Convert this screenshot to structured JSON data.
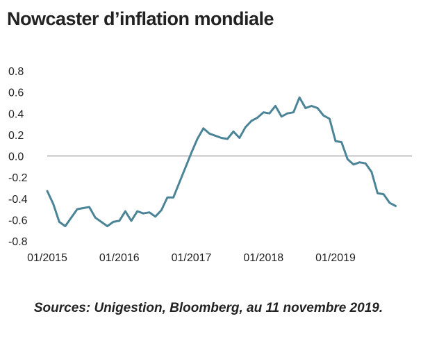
{
  "title": "Nowcaster d’inflation mondiale",
  "caption": "Sources: Unigestion, Bloomberg, au 11 novembre 2019.",
  "colors": {
    "line": "#4a8496",
    "zero_line": "#aaaaaa",
    "text": "#222222"
  },
  "chart_data": {
    "type": "line",
    "title": "Nowcaster d’inflation mondiale",
    "xlabel": "",
    "ylabel": "",
    "ylim": [
      -0.8,
      0.8
    ],
    "yticks": [
      0.8,
      0.6,
      0.4,
      0.2,
      0.0,
      -0.2,
      -0.4,
      -0.6,
      -0.8
    ],
    "ytick_labels": [
      "0.8",
      "0.6",
      "0.4",
      "0.2",
      "0.0",
      "-0.2",
      "-0.4",
      "-0.6",
      "-0.8"
    ],
    "xticks": [
      "2015-01",
      "2016-01",
      "2017-01",
      "2018-01",
      "2019-01"
    ],
    "xtick_labels": [
      "01/2015",
      "01/2016",
      "01/2017",
      "01/2018",
      "01/2019"
    ],
    "xlim": [
      "2015-01",
      "2019-11"
    ],
    "grid": false,
    "reference_line": 0.0,
    "series": [
      {
        "x": [
          "2015-01",
          "2015-02",
          "2015-03",
          "2015-04",
          "2015-05",
          "2015-06",
          "2015-07",
          "2015-08",
          "2015-09",
          "2015-10",
          "2015-11",
          "2015-12",
          "2016-01",
          "2016-02",
          "2016-03",
          "2016-04",
          "2016-05",
          "2016-06",
          "2016-07",
          "2016-08",
          "2016-09",
          "2016-10",
          "2016-11",
          "2016-12",
          "2017-01",
          "2017-02",
          "2017-03",
          "2017-04",
          "2017-05",
          "2017-06",
          "2017-07",
          "2017-08",
          "2017-09",
          "2017-10",
          "2017-11",
          "2017-12",
          "2018-01",
          "2018-02",
          "2018-03",
          "2018-04",
          "2018-05",
          "2018-06",
          "2018-07",
          "2018-08",
          "2018-09",
          "2018-10",
          "2018-11",
          "2018-12",
          "2019-01",
          "2019-02",
          "2019-03",
          "2019-04",
          "2019-05",
          "2019-06",
          "2019-07",
          "2019-08",
          "2019-09",
          "2019-10",
          "2019-11"
        ],
        "values": [
          -0.33,
          -0.45,
          -0.62,
          -0.66,
          -0.58,
          -0.5,
          -0.49,
          -0.48,
          -0.58,
          -0.62,
          -0.66,
          -0.62,
          -0.61,
          -0.52,
          -0.61,
          -0.52,
          -0.54,
          -0.53,
          -0.57,
          -0.51,
          -0.39,
          -0.39,
          -0.25,
          -0.11,
          0.03,
          0.16,
          0.26,
          0.21,
          0.19,
          0.17,
          0.16,
          0.23,
          0.17,
          0.27,
          0.33,
          0.36,
          0.41,
          0.4,
          0.47,
          0.37,
          0.4,
          0.41,
          0.55,
          0.45,
          0.47,
          0.45,
          0.38,
          0.35,
          0.14,
          0.13,
          -0.03,
          -0.08,
          -0.06,
          -0.07,
          -0.15,
          -0.35,
          -0.36,
          -0.44,
          -0.47
        ]
      }
    ]
  }
}
